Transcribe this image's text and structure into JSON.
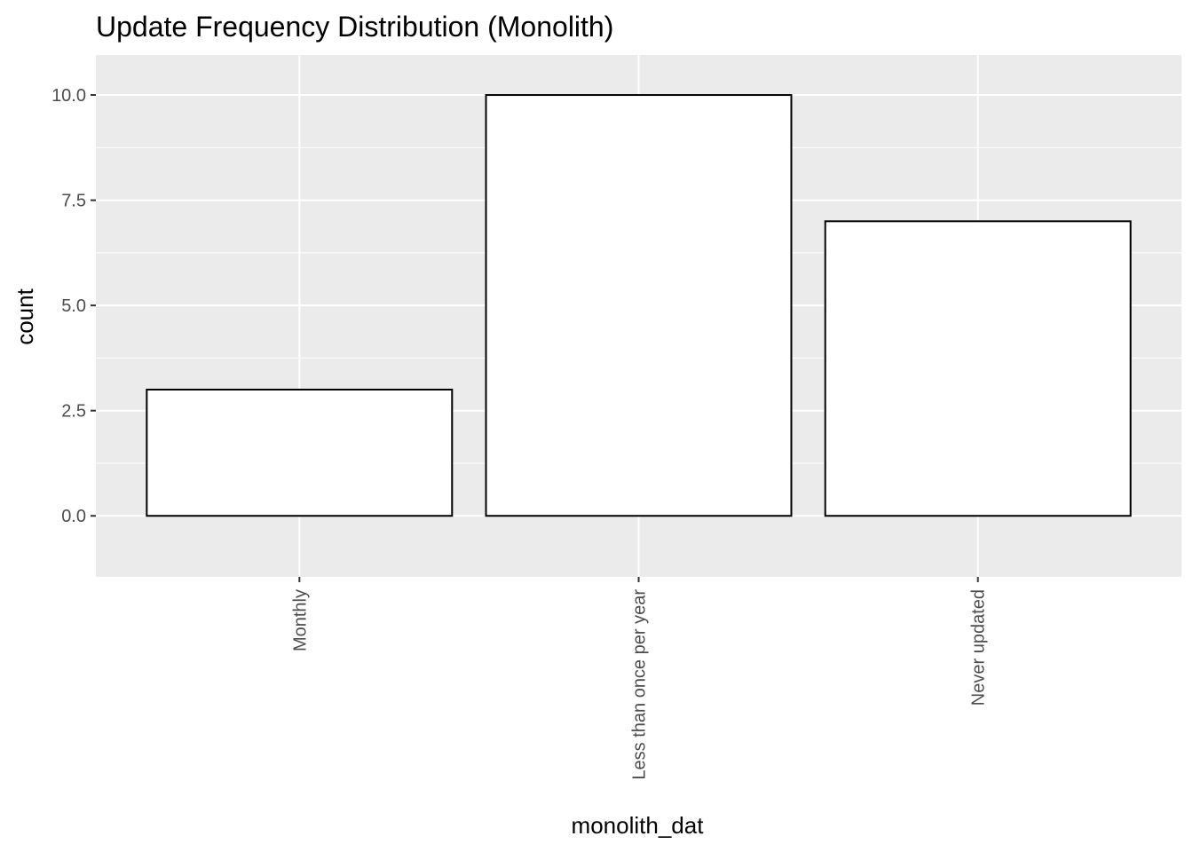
{
  "chart_data": {
    "type": "bar",
    "title": "Update Frequency Distribution (Monolith)",
    "xlabel": "monolith_dat",
    "ylabel": "count",
    "categories": [
      "Monthly",
      "Less than once per year",
      "Never updated"
    ],
    "values": [
      3,
      10,
      7
    ],
    "ylim": [
      -1.45,
      10.95
    ],
    "yticks": [
      0,
      2.5,
      5,
      7.5,
      10
    ],
    "ytick_labels": [
      "0.0",
      "2.5",
      "5.0",
      "7.5",
      "10.0"
    ],
    "grid": true,
    "legend": "none",
    "colors": {
      "panel_background": "#ebebeb",
      "grid": "#ffffff",
      "bar_fill": "#ffffff",
      "bar_outline": "#000000"
    }
  }
}
